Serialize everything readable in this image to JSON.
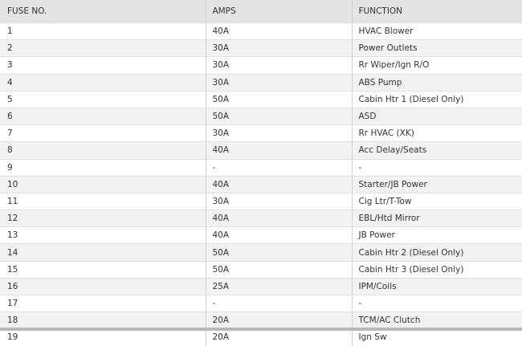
{
  "table": {
    "header": [
      "FUSE NO.",
      "AMPS",
      "FUNCTION"
    ],
    "rows": [
      [
        "1",
        "40A",
        "HVAC Blower"
      ],
      [
        "2",
        "30A",
        "Power Outlets"
      ],
      [
        "3",
        "30A",
        "Rr Wiper/Ign R/O"
      ],
      [
        "4",
        "30A",
        "ABS Pump"
      ],
      [
        "5",
        "50A",
        "Cabin Htr 1 (Diesel Only)"
      ],
      [
        "6",
        "50A",
        "ASD"
      ],
      [
        "7",
        "30A",
        "Rr HVAC (XK)"
      ],
      [
        "8",
        "40A",
        "Acc Delay/Seats"
      ],
      [
        "9",
        "-",
        "-"
      ],
      [
        "10",
        "40A",
        "Starter/JB Power"
      ],
      [
        "11",
        "30A",
        "Cig Ltr/T-Tow"
      ],
      [
        "12",
        "40A",
        "EBL/Htd Mirror"
      ],
      [
        "13",
        "40A",
        "JB Power"
      ],
      [
        "14",
        "50A",
        "Cabin Htr 2 (Diesel Only)"
      ],
      [
        "15",
        "50A",
        "Cabin Htr 3 (Diesel Only)"
      ],
      [
        "16",
        "25A",
        "IPM/Coils"
      ],
      [
        "17",
        "-",
        "-"
      ],
      [
        "18",
        "20A",
        "TCM/AC Clutch"
      ],
      [
        "19",
        "20A",
        "Ign Sw"
      ]
    ]
  }
}
